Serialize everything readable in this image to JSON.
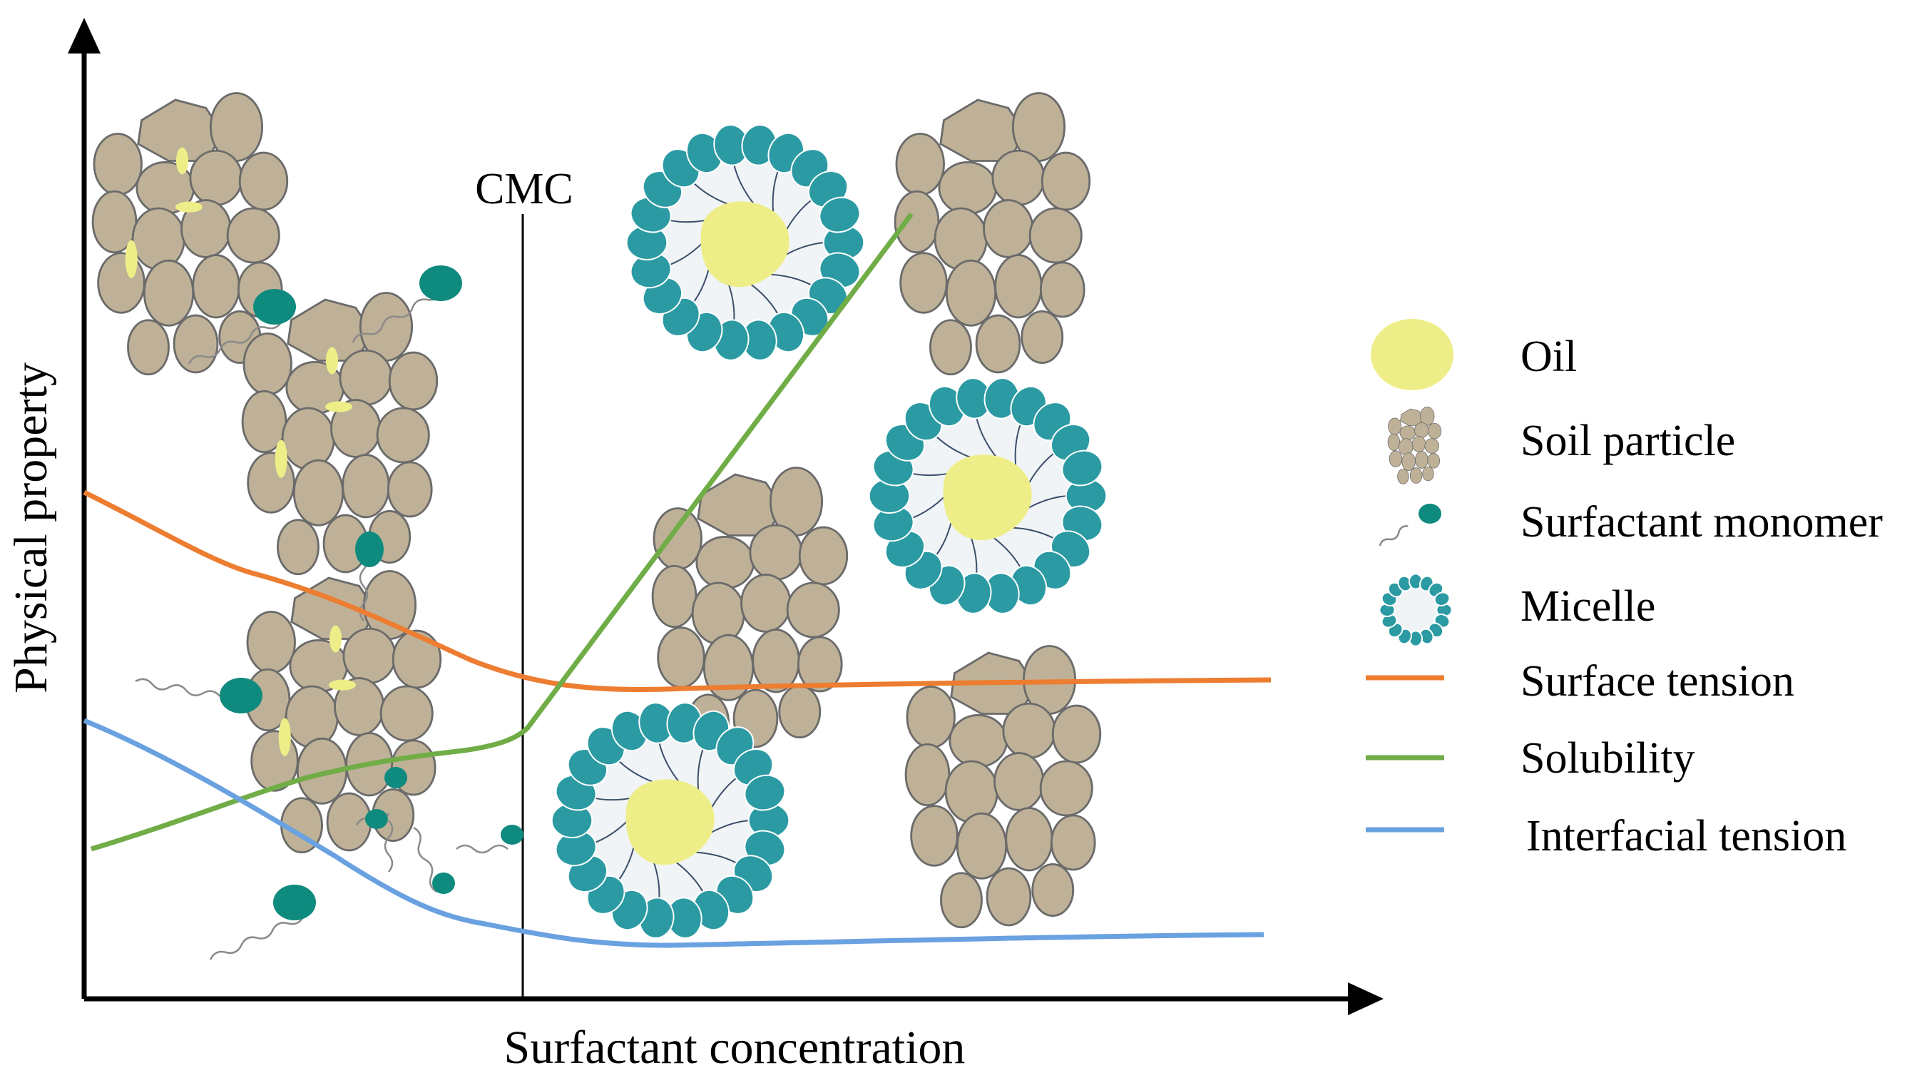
{
  "diagram": {
    "x_axis_label": "Surfactant concentration",
    "y_axis_label": "Physical property",
    "cmc_label": "CMC",
    "colors": {
      "surface_tension": "#ed7d31",
      "solubility": "#70ad47",
      "interfacial_tension": "#6aa1e0",
      "micelle_head": "#2b9aa3",
      "monomer_head": "#0f8a7e",
      "oil": "#eeee88",
      "soil": "#bfb197",
      "soil_stroke": "#6b6b6b",
      "micelle_core": "#f1f4f6"
    },
    "legend": [
      {
        "icon": "oil-icon",
        "label": "Oil"
      },
      {
        "icon": "soil-particle-icon",
        "label": "Soil particle"
      },
      {
        "icon": "surfactant-monomer-icon",
        "label": "Surfactant monomer"
      },
      {
        "icon": "micelle-icon",
        "label": "Micelle"
      },
      {
        "icon": "surface-tension-line-icon",
        "label": "Surface tension"
      },
      {
        "icon": "solubility-line-icon",
        "label": "Solubility"
      },
      {
        "icon": "interfacial-tension-line-icon",
        "label": "Interfacial tension"
      }
    ]
  }
}
